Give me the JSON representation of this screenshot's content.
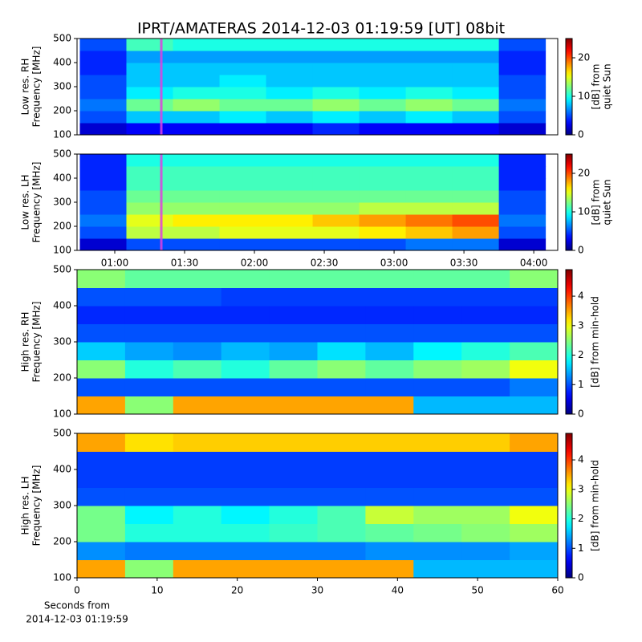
{
  "title": "IPRT/AMATERAS 2014-12-03 01:19:59 [UT]   08bit",
  "x_note": [
    "Seconds from",
    "2014-12-03 01:19:59"
  ],
  "chart_data": [
    {
      "type": "heatmap",
      "ylabel": [
        "Low res. RH",
        "Frequency [MHz]"
      ],
      "colormap": "jet",
      "xlim": [
        43.8,
        250.3
      ],
      "ylim": [
        100,
        500
      ],
      "yticks": [
        100,
        200,
        300,
        400,
        500
      ],
      "xbins": [
        45,
        65,
        85,
        105,
        125,
        145,
        165,
        185,
        205,
        225,
        245
      ],
      "ybins": [
        100,
        150,
        200,
        250,
        300,
        350,
        400,
        450,
        500
      ],
      "cursor": 80,
      "z": [
        [
          2,
          3,
          3,
          3,
          3,
          4,
          3,
          3,
          3,
          2
        ],
        [
          5,
          8,
          8,
          9,
          8,
          9,
          8,
          9,
          8,
          5
        ],
        [
          6,
          12,
          13,
          12,
          12,
          13,
          12,
          13,
          12,
          6
        ],
        [
          5,
          9,
          10,
          10,
          9,
          10,
          9,
          10,
          9,
          5
        ],
        [
          5,
          8,
          8,
          9,
          8,
          8,
          8,
          8,
          8,
          5
        ],
        [
          4,
          8,
          8,
          8,
          8,
          8,
          8,
          8,
          8,
          4
        ],
        [
          4,
          7,
          7,
          7,
          7,
          7,
          7,
          7,
          7,
          4
        ],
        [
          5,
          11,
          10,
          10,
          10,
          10,
          10,
          10,
          10,
          5
        ]
      ],
      "clim": [
        0,
        25
      ],
      "cticks": [
        0,
        10,
        20
      ],
      "clabel": [
        "[dB] from",
        "quiet Sun"
      ]
    },
    {
      "type": "heatmap",
      "ylabel": [
        "Low res. LH",
        "Frequency [MHz]"
      ],
      "colormap": "jet",
      "xlim": [
        43.8,
        250.3
      ],
      "ylim": [
        100,
        500
      ],
      "yticks": [
        100,
        200,
        300,
        400,
        500
      ],
      "xticks": [
        {
          "value": 60,
          "label": "01:00"
        },
        {
          "value": 90,
          "label": "01:30"
        },
        {
          "value": 120,
          "label": "02:00"
        },
        {
          "value": 150,
          "label": "02:30"
        },
        {
          "value": 180,
          "label": "03:00"
        },
        {
          "value": 210,
          "label": "03:30"
        },
        {
          "value": 240,
          "label": "04:00"
        }
      ],
      "xbins": [
        45,
        65,
        85,
        105,
        125,
        145,
        165,
        185,
        205,
        225,
        245
      ],
      "ybins": [
        100,
        150,
        200,
        250,
        300,
        350,
        400,
        450,
        500
      ],
      "cursor": 80,
      "z": [
        [
          2,
          5,
          5,
          5,
          5,
          5,
          5,
          6,
          6,
          2
        ],
        [
          5,
          14,
          14,
          15,
          15,
          15,
          16,
          17,
          18,
          5
        ],
        [
          6,
          15,
          16,
          16,
          16,
          17,
          18,
          19,
          20,
          6
        ],
        [
          5,
          13,
          13,
          13,
          13,
          13,
          14,
          14,
          14,
          5
        ],
        [
          5,
          12,
          12,
          12,
          12,
          12,
          12,
          12,
          12,
          5
        ],
        [
          4,
          11,
          11,
          11,
          11,
          11,
          11,
          11,
          11,
          4
        ],
        [
          4,
          11,
          11,
          11,
          11,
          11,
          11,
          11,
          11,
          4
        ],
        [
          4,
          10,
          10,
          10,
          10,
          10,
          10,
          10,
          10,
          4
        ]
      ],
      "clim": [
        0,
        25
      ],
      "cticks": [
        0,
        10,
        20
      ],
      "clabel": [
        "[dB] from",
        "quiet Sun"
      ]
    },
    {
      "type": "heatmap",
      "ylabel": [
        "High res. RH",
        "Frequency [MHz]"
      ],
      "colormap": "jet",
      "xlim": [
        0,
        60
      ],
      "ylim": [
        100,
        500
      ],
      "yticks": [
        100,
        200,
        300,
        400,
        500
      ],
      "xbins": [
        0,
        6,
        12,
        18,
        24,
        30,
        36,
        42,
        48,
        54,
        60
      ],
      "ybins": [
        100,
        150,
        200,
        250,
        300,
        350,
        400,
        450,
        500
      ],
      "z": [
        [
          3.5,
          2.5,
          3.5,
          3.5,
          3.5,
          3.5,
          3.5,
          1.5,
          1.5,
          1.5
        ],
        [
          1,
          1,
          1,
          1,
          1,
          1,
          1,
          1,
          1,
          1.2
        ],
        [
          2.5,
          2,
          2.2,
          2,
          2.3,
          2.5,
          2.3,
          2.5,
          2.6,
          3
        ],
        [
          1.6,
          1.4,
          1.3,
          1.5,
          1.4,
          1.7,
          1.5,
          1.8,
          2,
          2.2
        ],
        [
          1,
          1,
          1,
          1,
          1,
          1,
          1,
          1,
          1,
          1
        ],
        [
          0.8,
          0.8,
          0.8,
          0.8,
          0.8,
          0.8,
          0.8,
          0.8,
          0.8,
          0.8
        ],
        [
          1,
          1,
          1,
          0.9,
          0.9,
          0.9,
          0.9,
          0.9,
          0.9,
          0.9
        ],
        [
          2.5,
          2.3,
          2.3,
          2.3,
          2.3,
          2.3,
          2.3,
          2.3,
          2.3,
          2.5
        ]
      ],
      "clim": [
        0,
        4.9
      ],
      "cticks": [
        0,
        1,
        2,
        3,
        4
      ],
      "clabel": [
        "[dB] from min-hold"
      ]
    },
    {
      "type": "heatmap",
      "ylabel": [
        "High res. LH",
        "Frequency [MHz]"
      ],
      "colormap": "jet",
      "xlim": [
        0,
        60
      ],
      "ylim": [
        100,
        500
      ],
      "yticks": [
        100,
        200,
        300,
        400,
        500
      ],
      "xticks": [
        0,
        10,
        20,
        30,
        40,
        50,
        60
      ],
      "xbins": [
        0,
        6,
        12,
        18,
        24,
        30,
        36,
        42,
        48,
        54,
        60
      ],
      "ybins": [
        100,
        150,
        200,
        250,
        300,
        350,
        400,
        450,
        500
      ],
      "z": [
        [
          3.5,
          2.5,
          3.5,
          3.5,
          3.5,
          3.5,
          3.5,
          1.5,
          1.5,
          1.5
        ],
        [
          1.3,
          1.2,
          1.2,
          1.2,
          1.2,
          1.2,
          1.3,
          1.3,
          1.3,
          1.4
        ],
        [
          2.4,
          2,
          2,
          2,
          2.1,
          2.2,
          2.3,
          2.4,
          2.5,
          2.6
        ],
        [
          2.4,
          1.8,
          2,
          1.8,
          2,
          2.2,
          2.8,
          2.6,
          2.6,
          3
        ],
        [
          1,
          1,
          1,
          1,
          1,
          1,
          1,
          1,
          1,
          1
        ],
        [
          0.9,
          0.9,
          0.9,
          0.9,
          0.9,
          0.9,
          0.9,
          0.9,
          0.9,
          0.9
        ],
        [
          0.9,
          0.9,
          0.9,
          0.9,
          0.9,
          0.9,
          0.9,
          0.9,
          0.9,
          0.9
        ],
        [
          3.5,
          3.2,
          3.3,
          3.3,
          3.3,
          3.3,
          3.3,
          3.3,
          3.3,
          3.5
        ]
      ],
      "clim": [
        0,
        4.9
      ],
      "cticks": [
        0,
        1,
        2,
        3,
        4
      ],
      "clabel": [
        "[dB] from min-hold"
      ]
    }
  ]
}
